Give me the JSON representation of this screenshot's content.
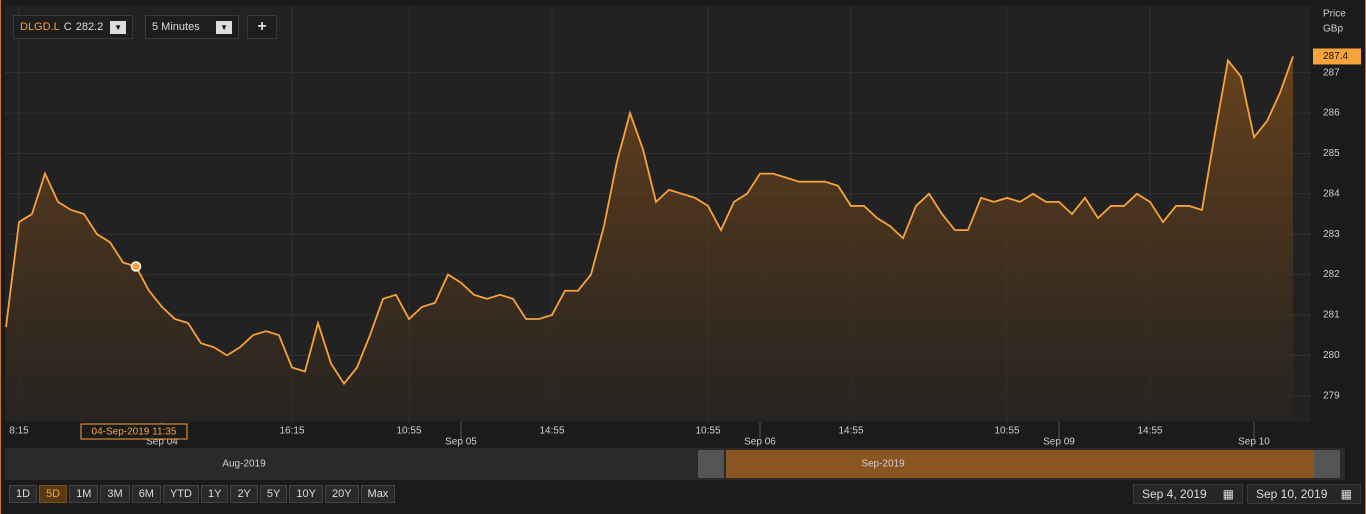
{
  "toolbar": {
    "symbol": "DLGD.L",
    "close_prefix": "C",
    "close": "282.2",
    "interval": "5 Minutes",
    "add": "+"
  },
  "chart_data": {
    "type": "line",
    "y_axis_title": [
      "Price",
      "GBp"
    ],
    "x": [
      0,
      1,
      2,
      3,
      4,
      5,
      6,
      7,
      8,
      9,
      10,
      11,
      12,
      13,
      14,
      15,
      16,
      17,
      18,
      19,
      20,
      21,
      22,
      23,
      24,
      25,
      26,
      27,
      28,
      29,
      30,
      31,
      32,
      33,
      34,
      35,
      36,
      37,
      38,
      39,
      40,
      41,
      42,
      43,
      44,
      45,
      46,
      47,
      48,
      49,
      50,
      51,
      52,
      53,
      54,
      55,
      56,
      57,
      58,
      59,
      60,
      61,
      62,
      63,
      64,
      65,
      66,
      67,
      68,
      69,
      70,
      71,
      72,
      73,
      74,
      75,
      76,
      77,
      78,
      79,
      80,
      81,
      82,
      83,
      84,
      85,
      86,
      87,
      88,
      89,
      90,
      91,
      92,
      93,
      94,
      95,
      96,
      97,
      98,
      99
    ],
    "series": [
      {
        "name": "DLGD.L",
        "color": "#f7a23a",
        "values": [
          280.7,
          283.3,
          283.5,
          284.5,
          283.8,
          283.6,
          283.5,
          283.0,
          282.8,
          282.3,
          282.2,
          281.6,
          281.2,
          280.9,
          280.8,
          280.3,
          280.2,
          280.0,
          280.2,
          280.5,
          280.6,
          280.5,
          279.7,
          279.6,
          280.8,
          279.8,
          279.3,
          279.7,
          280.5,
          281.4,
          281.5,
          280.9,
          281.2,
          281.3,
          282.0,
          281.8,
          281.5,
          281.4,
          281.5,
          281.4,
          280.9,
          280.9,
          281.0,
          281.6,
          281.6,
          282.0,
          283.2,
          284.8,
          286.0,
          285.1,
          283.8,
          284.1,
          284.0,
          283.9,
          283.7,
          283.1,
          283.8,
          284.0,
          284.5,
          284.5,
          284.4,
          284.3,
          284.3,
          284.3,
          284.2,
          283.7,
          283.7,
          283.4,
          283.2,
          282.9,
          283.7,
          284.0,
          283.5,
          283.1,
          283.1,
          283.9,
          283.8,
          283.9,
          283.8,
          284.0,
          283.8,
          283.8,
          283.5,
          283.9,
          283.4,
          283.7,
          283.7,
          284.0,
          283.8,
          283.3,
          283.7,
          283.7,
          283.6,
          285.5,
          287.3,
          286.9,
          285.4,
          285.8,
          286.5,
          287.4
        ],
        "value_labels": {
          "99": "287.4"
        }
      }
    ],
    "xlim": [
      0,
      99
    ],
    "ylim": [
      278.4,
      288.6
    ],
    "yticks": [
      279,
      280,
      281,
      282,
      283,
      284,
      285,
      286,
      287
    ],
    "xticks": [
      {
        "value": 1,
        "label": "8:15"
      },
      {
        "value": 22,
        "label": "16:15"
      },
      {
        "value": 31,
        "label": "10:55"
      },
      {
        "value": 42,
        "label": "14:55"
      },
      {
        "value": 54,
        "label": "10:55"
      },
      {
        "value": 65,
        "label": "14:55"
      },
      {
        "value": 77,
        "label": "10:55"
      },
      {
        "value": 88,
        "label": "14:55"
      }
    ],
    "date_ticks": [
      {
        "value": 12,
        "label": "Sep 04"
      },
      {
        "value": 35,
        "label": "Sep 05"
      },
      {
        "value": 58,
        "label": "Sep 06"
      },
      {
        "value": 81,
        "label": "Sep 09"
      },
      {
        "value": 96,
        "label": "Sep 10"
      }
    ],
    "hover": {
      "index": 10,
      "label": "04-Sep-2019 11:35"
    },
    "grid": true
  },
  "navigator": {
    "left_label": "Aug-2019",
    "right_label": "Sep-2019"
  },
  "range_buttons": [
    "1D",
    "5D",
    "1M",
    "3M",
    "6M",
    "YTD",
    "1Y",
    "2Y",
    "5Y",
    "10Y",
    "20Y",
    "Max"
  ],
  "date_range": {
    "from": "Sep 4, 2019",
    "to": "Sep 10, 2019"
  }
}
